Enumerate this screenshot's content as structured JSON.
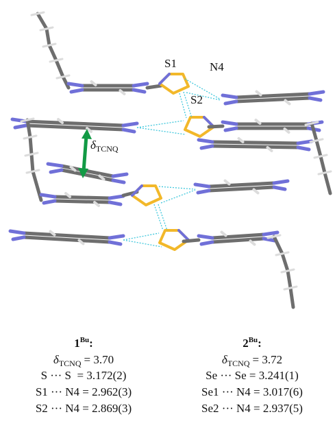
{
  "figure": {
    "labels": {
      "s1": "S1",
      "n4": "N4",
      "s2": "S2",
      "delta": {
        "symbol": "δ",
        "sub": "TCNQ"
      }
    }
  },
  "compounds": [
    {
      "name": {
        "number": "1",
        "sup": "Bu",
        "suffix": ":"
      },
      "delta": {
        "symbol": "δ",
        "sub": "TCNQ",
        "value": "= 3.70"
      },
      "contacts": [
        "S ··· S  = 3.172(2)",
        "S1 ··· N4 = 2.962(3)",
        "S2 ··· N4 = 2.869(3)"
      ]
    },
    {
      "name": {
        "number": "2",
        "sup": "Bu",
        "suffix": ":"
      },
      "delta": {
        "symbol": "δ",
        "sub": "TCNQ",
        "value": "= 3.72"
      },
      "contacts": [
        "Se ··· Se = 3.241(1)",
        "Se1 ··· N4 = 3.017(6)",
        "Se2 ··· N4 = 2.937(5)"
      ]
    }
  ]
}
